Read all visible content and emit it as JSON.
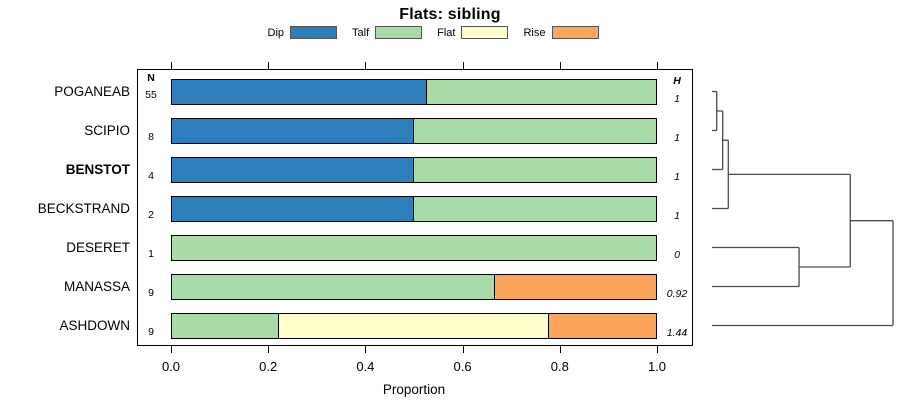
{
  "chart_data": {
    "type": "bar",
    "subtype": "horizontal-stacked-proportions-with-dendrogram",
    "title": "Flats: sibling",
    "xlabel": "Proportion",
    "xlim": [
      0,
      1
    ],
    "xticks": [
      "0.0",
      "0.2",
      "0.4",
      "0.6",
      "0.8",
      "1.0"
    ],
    "grid": false,
    "legend_position": "top",
    "legend": [
      {
        "label": "Dip",
        "color": "#2e7ebb"
      },
      {
        "label": "Talf",
        "color": "#a9dba9"
      },
      {
        "label": "Flat",
        "color": "#ffffcc"
      },
      {
        "label": "Rise",
        "color": "#fba55d"
      }
    ],
    "n_header": "N",
    "h_header": "H",
    "rows": [
      {
        "label": "POGANEAB",
        "emphasis": false,
        "n": "55",
        "h": "1",
        "segments": [
          {
            "category": "Dip",
            "value": 0.527
          },
          {
            "category": "Talf",
            "value": 0.473
          }
        ]
      },
      {
        "label": "SCIPIO",
        "emphasis": false,
        "n": "8",
        "h": "1",
        "segments": [
          {
            "category": "Dip",
            "value": 0.5
          },
          {
            "category": "Talf",
            "value": 0.5
          }
        ]
      },
      {
        "label": "BENSTOT",
        "emphasis": true,
        "n": "4",
        "h": "1",
        "segments": [
          {
            "category": "Dip",
            "value": 0.5
          },
          {
            "category": "Talf",
            "value": 0.5
          }
        ]
      },
      {
        "label": "BECKSTRAND",
        "emphasis": false,
        "n": "2",
        "h": "1",
        "segments": [
          {
            "category": "Dip",
            "value": 0.5
          },
          {
            "category": "Talf",
            "value": 0.5
          }
        ]
      },
      {
        "label": "DESERET",
        "emphasis": false,
        "n": "1",
        "h": "0",
        "segments": [
          {
            "category": "Talf",
            "value": 1.0
          }
        ]
      },
      {
        "label": "MANASSA",
        "emphasis": false,
        "n": "9",
        "h": "0.92",
        "segments": [
          {
            "category": "Talf",
            "value": 0.667
          },
          {
            "category": "Rise",
            "value": 0.333
          }
        ]
      },
      {
        "label": "ASHDOWN",
        "emphasis": false,
        "n": "9",
        "h": "1.44",
        "segments": [
          {
            "category": "Talf",
            "value": 0.222
          },
          {
            "category": "Flat",
            "value": 0.556
          },
          {
            "category": "Rise",
            "value": 0.222
          }
        ]
      }
    ],
    "dendrogram": {
      "line_color": "#4a4a4a",
      "merges": [
        {
          "children": [
            "POGANEAB",
            "SCIPIO"
          ],
          "x": 0.026
        },
        {
          "children": [
            "m0",
            "BENSTOT"
          ],
          "x": 0.059
        },
        {
          "children": [
            "m1",
            "BECKSTRAND"
          ],
          "x": 0.09
        },
        {
          "children": [
            "DESERET",
            "MANASSA"
          ],
          "x": 0.481
        },
        {
          "children": [
            "m2",
            "m3"
          ],
          "x": 0.764
        },
        {
          "children": [
            "m4",
            "ASHDOWN"
          ],
          "x": 1.0
        }
      ]
    }
  }
}
